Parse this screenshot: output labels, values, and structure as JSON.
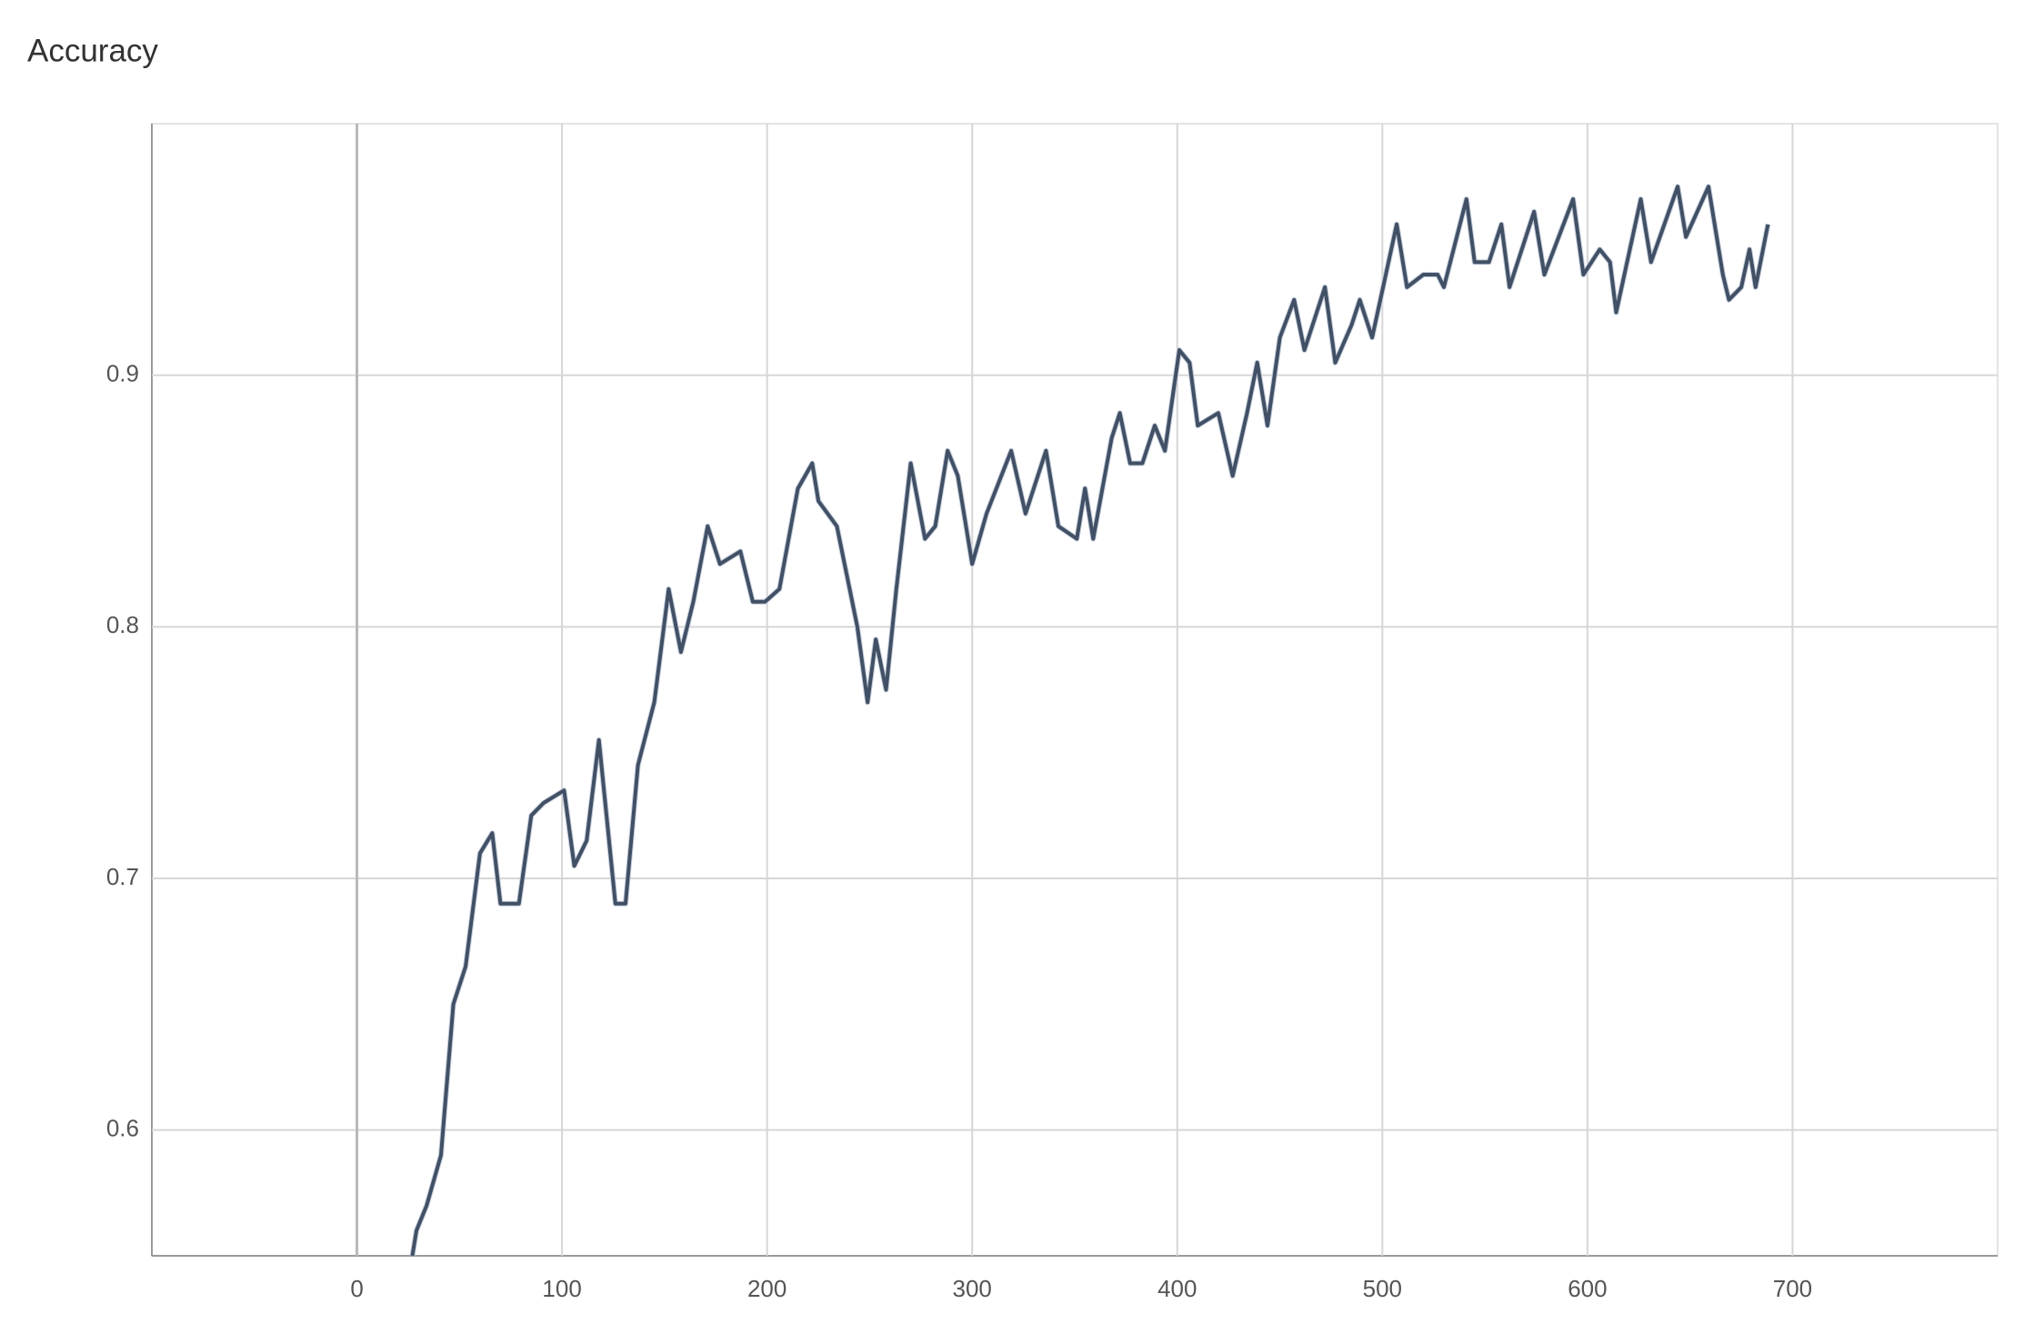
{
  "chart_data": {
    "type": "line",
    "title": "Accuracy",
    "x": [
      27,
      29,
      34,
      41,
      47,
      53,
      60,
      66,
      70,
      79,
      85,
      91,
      101,
      106,
      112,
      118,
      126,
      131,
      137,
      145,
      152,
      158,
      164,
      171,
      177,
      187,
      193,
      199,
      206,
      215,
      222,
      225,
      234,
      244,
      249,
      253,
      258,
      263,
      270,
      277,
      282,
      288,
      293,
      300,
      307,
      319,
      326,
      336,
      342,
      351,
      355,
      359,
      368,
      372,
      377,
      383,
      389,
      394,
      401,
      406,
      410,
      420,
      427,
      434,
      439,
      444,
      450,
      457,
      462,
      472,
      477,
      485,
      489,
      495,
      507,
      512,
      520,
      527,
      530,
      541,
      545,
      552,
      558,
      562,
      574,
      579,
      593,
      598,
      606,
      611,
      614,
      626,
      631,
      644,
      648,
      659,
      666,
      669,
      675,
      679,
      682,
      688
    ],
    "values": [
      0.55,
      0.56,
      0.57,
      0.59,
      0.65,
      0.665,
      0.71,
      0.718,
      0.69,
      0.69,
      0.725,
      0.73,
      0.735,
      0.705,
      0.715,
      0.755,
      0.69,
      0.69,
      0.745,
      0.77,
      0.815,
      0.79,
      0.81,
      0.84,
      0.825,
      0.83,
      0.81,
      0.81,
      0.815,
      0.855,
      0.865,
      0.85,
      0.84,
      0.8,
      0.77,
      0.795,
      0.775,
      0.815,
      0.865,
      0.835,
      0.84,
      0.87,
      0.86,
      0.825,
      0.845,
      0.87,
      0.845,
      0.87,
      0.84,
      0.835,
      0.855,
      0.835,
      0.875,
      0.885,
      0.865,
      0.865,
      0.88,
      0.87,
      0.91,
      0.905,
      0.88,
      0.885,
      0.86,
      0.885,
      0.905,
      0.88,
      0.915,
      0.93,
      0.91,
      0.935,
      0.905,
      0.92,
      0.93,
      0.915,
      0.96,
      0.935,
      0.94,
      0.94,
      0.935,
      0.97,
      0.945,
      0.945,
      0.96,
      0.935,
      0.965,
      0.94,
      0.97,
      0.94,
      0.95,
      0.945,
      0.925,
      0.97,
      0.945,
      0.975,
      0.955,
      0.975,
      0.94,
      0.93,
      0.935,
      0.95,
      0.935,
      0.96
    ],
    "color": "#425066",
    "xlim": [
      -100,
      800
    ],
    "ylim": [
      0.55,
      1.0
    ],
    "xticks": [
      0,
      100,
      200,
      300,
      400,
      500,
      600,
      700
    ],
    "yticks": [
      0.6,
      0.7,
      0.8,
      0.9
    ],
    "grid": true
  }
}
